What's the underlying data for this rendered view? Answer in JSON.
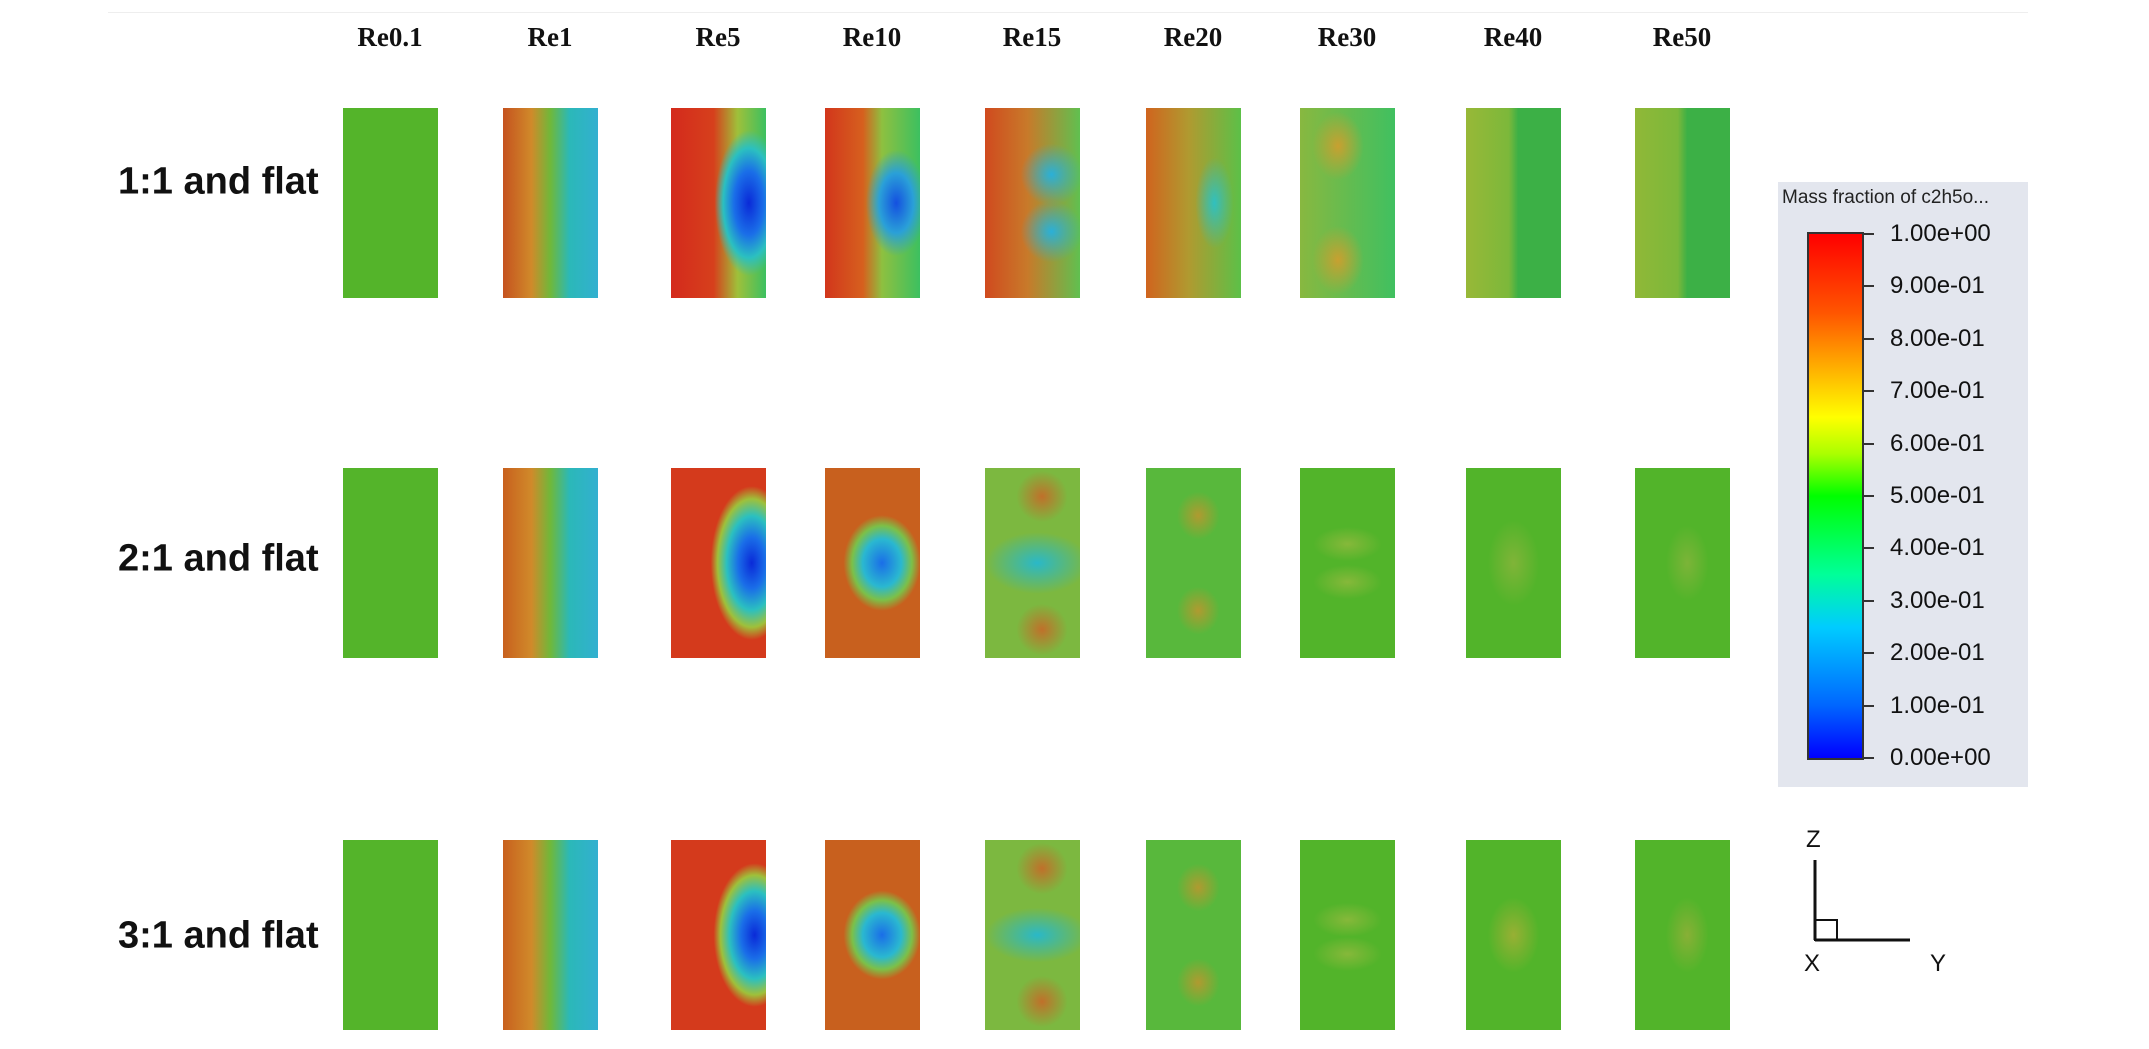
{
  "columns": [
    "Re0.1",
    "Re1",
    "Re5",
    "Re10",
    "Re15",
    "Re20",
    "Re30",
    "Re40",
    "Re50"
  ],
  "rows": [
    "1:1 and flat",
    "2:1 and flat",
    "3:1 and flat"
  ],
  "legend": {
    "title": "Mass fraction of c2h5o...",
    "ticks": [
      "1.00e+00",
      "9.00e-01",
      "8.00e-01",
      "7.00e-01",
      "6.00e-01",
      "5.00e-01",
      "4.00e-01",
      "3.00e-01",
      "2.00e-01",
      "1.00e-01",
      "0.00e+00"
    ]
  },
  "axes": {
    "z": "Z",
    "y": "Y",
    "x": "X"
  },
  "colors": {
    "base_green": "#52b42a",
    "red": "#d42a1c",
    "blue": "#0d3fd8",
    "cyan": "#2bb8c8"
  }
}
